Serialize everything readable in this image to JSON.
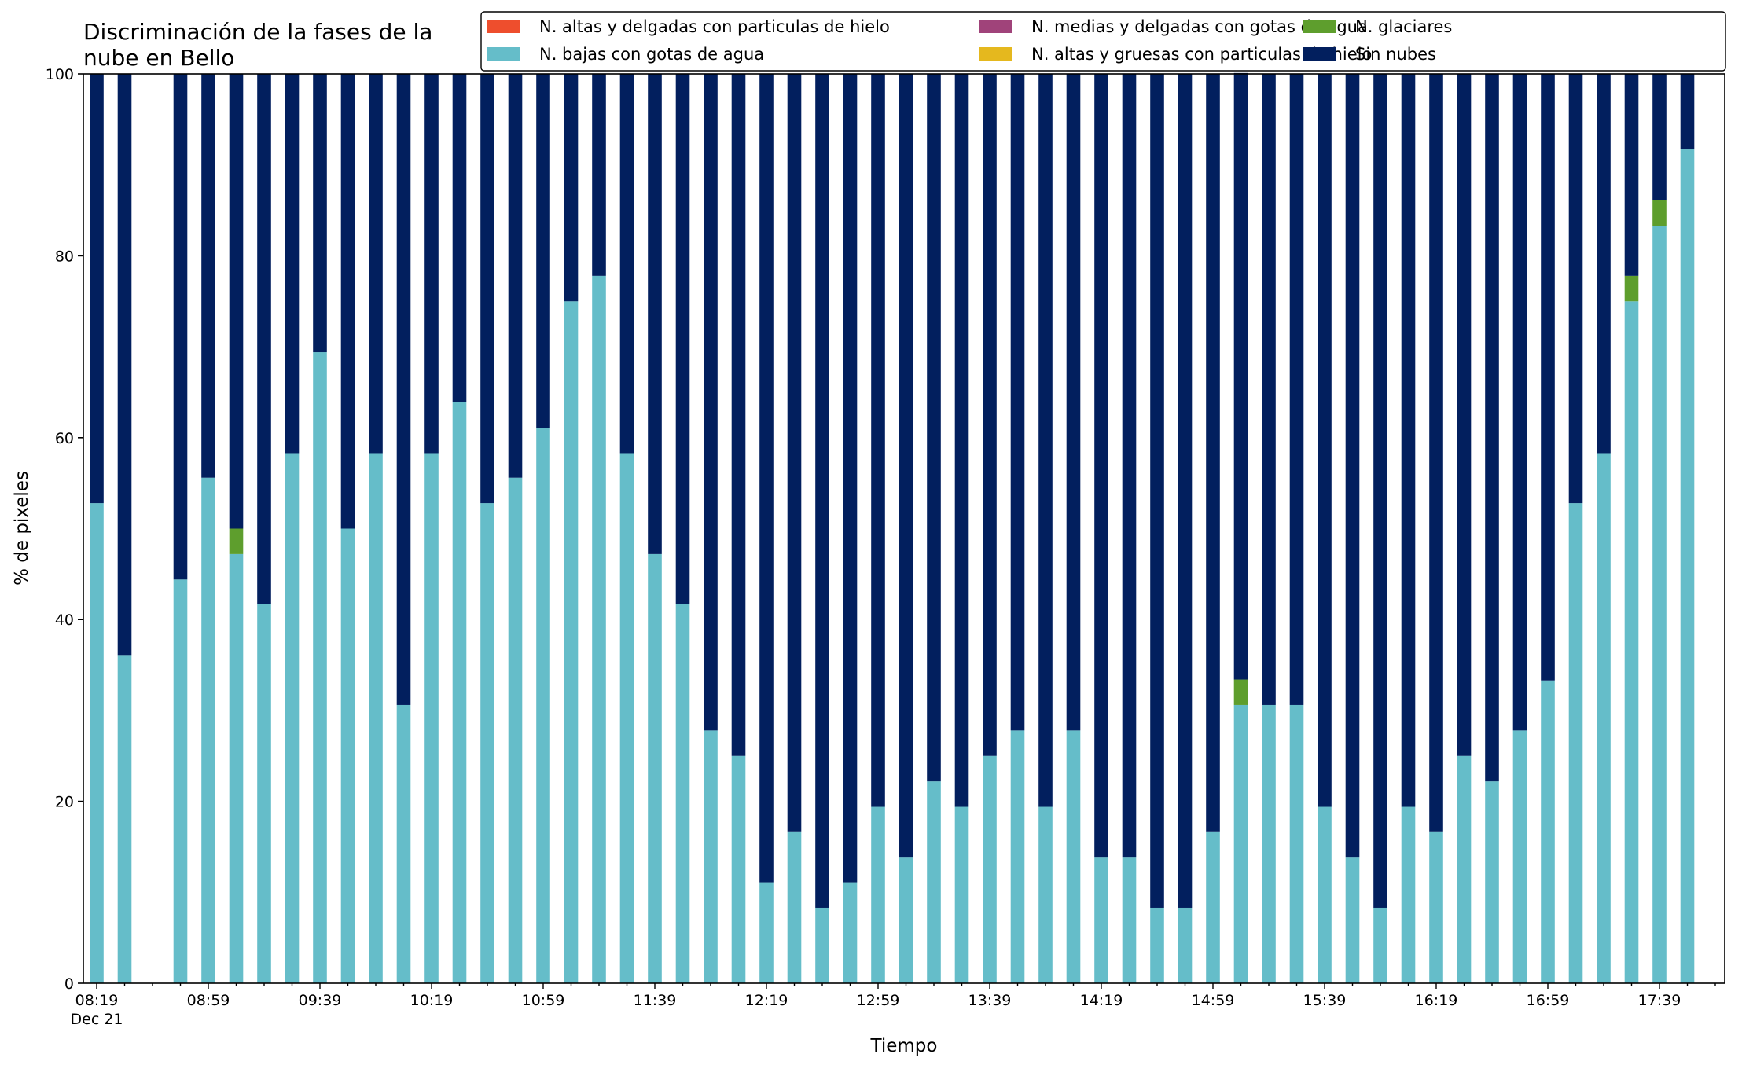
{
  "chart_data": {
    "type": "bar",
    "stacked": true,
    "title_lines": [
      "Discriminación de la fases de la",
      "nube en Bello"
    ],
    "xlabel": "Tiempo",
    "ylabel": "% de pixeles",
    "ylim": [
      0,
      100
    ],
    "yticks": [
      0,
      20,
      40,
      60,
      80,
      100
    ],
    "grid": false,
    "legend_position": "top-right",
    "x_interval_minutes": 10,
    "x_start_time": "08:19",
    "x_tick_labels": [
      {
        "index": 0,
        "label": "08:19",
        "sublabel": "Dec 21"
      },
      {
        "index": 4,
        "label": "08:59"
      },
      {
        "index": 8,
        "label": "09:39"
      },
      {
        "index": 12,
        "label": "10:19"
      },
      {
        "index": 16,
        "label": "10:59"
      },
      {
        "index": 20,
        "label": "11:39"
      },
      {
        "index": 24,
        "label": "12:19"
      },
      {
        "index": 28,
        "label": "12:59"
      },
      {
        "index": 32,
        "label": "13:39"
      },
      {
        "index": 36,
        "label": "14:19"
      },
      {
        "index": 40,
        "label": "14:59"
      },
      {
        "index": 44,
        "label": "15:39"
      },
      {
        "index": 48,
        "label": "16:19"
      },
      {
        "index": 52,
        "label": "16:59"
      },
      {
        "index": 56,
        "label": "17:39"
      }
    ],
    "legend_order": [
      "altas_delgadas",
      "bajas_agua",
      "medias_delgadas",
      "altas_gruesas",
      "glaciares",
      "sin_nubes"
    ],
    "series": [
      {
        "key": "altas_delgadas",
        "name": "N. altas y delgadas con particulas de hielo",
        "color": "#ee4e2d",
        "values": [
          0,
          0,
          null,
          0,
          0,
          0,
          0,
          0,
          0,
          0,
          0,
          0,
          0,
          0,
          0,
          0,
          0,
          0,
          0,
          0,
          0,
          0,
          0,
          0,
          0,
          0,
          0,
          0,
          0,
          0,
          0,
          0,
          0,
          0,
          0,
          0,
          0,
          0,
          0,
          0,
          0,
          0,
          0,
          0,
          0,
          0,
          0,
          0,
          0,
          0,
          0,
          0,
          0,
          0,
          0,
          0,
          0,
          0
        ]
      },
      {
        "key": "altas_gruesas",
        "name": "N. altas y gruesas con particulas de hielo",
        "color": "#e5b81e",
        "values": [
          0,
          0,
          null,
          0,
          0,
          0,
          0,
          0,
          0,
          0,
          0,
          0,
          0,
          0,
          0,
          0,
          0,
          0,
          0,
          0,
          0,
          0,
          0,
          0,
          0,
          0,
          0,
          0,
          0,
          0,
          0,
          0,
          0,
          0,
          0,
          0,
          0,
          0,
          0,
          0,
          0,
          0,
          0,
          0,
          0,
          0,
          0,
          0,
          0,
          0,
          0,
          0,
          0,
          0,
          0,
          0,
          0,
          0
        ]
      },
      {
        "key": "bajas_agua",
        "name": "N. bajas con gotas de agua",
        "color": "#65bdc9",
        "values": [
          52.8,
          36.1,
          null,
          44.4,
          55.6,
          47.2,
          41.7,
          58.3,
          69.4,
          50.0,
          58.3,
          30.6,
          58.3,
          63.9,
          52.8,
          55.6,
          61.1,
          75.0,
          77.8,
          58.3,
          47.2,
          41.7,
          27.8,
          25.0,
          11.1,
          16.7,
          8.3,
          11.1,
          19.4,
          13.9,
          22.2,
          19.4,
          25.0,
          27.8,
          19.4,
          27.8,
          13.9,
          13.9,
          8.3,
          8.3,
          16.7,
          30.6,
          30.6,
          30.6,
          19.4,
          13.9,
          8.3,
          19.4,
          16.7,
          25.0,
          22.2,
          27.8,
          33.3,
          52.8,
          58.3,
          75.0,
          83.3,
          91.7
        ]
      },
      {
        "key": "glaciares",
        "name": "N. glaciares",
        "color": "#5e9e2d",
        "values": [
          0,
          0,
          null,
          0,
          0,
          2.8,
          0,
          0,
          0,
          0,
          0,
          0,
          0,
          0,
          0,
          0,
          0,
          0,
          0,
          0,
          0,
          0,
          0,
          0,
          0,
          0,
          0,
          0,
          0,
          0,
          0,
          0,
          0,
          0,
          0,
          0,
          0,
          0,
          0,
          0,
          0,
          2.8,
          0,
          0,
          0,
          0,
          0,
          0,
          0,
          0,
          0,
          0,
          0,
          0,
          0,
          2.8,
          2.8,
          0
        ]
      },
      {
        "key": "medias_delgadas",
        "name": "N. medias y delgadas con gotas de agua",
        "color": "#a0437a",
        "values": [
          0,
          0,
          null,
          0,
          0,
          0,
          0,
          0,
          0,
          0,
          0,
          0,
          0,
          0,
          0,
          0,
          0,
          0,
          0,
          0,
          0,
          0,
          0,
          0,
          0,
          0,
          0,
          0,
          0,
          0,
          0,
          0,
          0,
          0,
          0,
          0,
          0,
          0,
          0,
          0,
          0,
          0,
          0,
          0,
          0,
          0,
          0,
          0,
          0,
          0,
          0,
          0,
          0,
          0,
          0,
          0,
          0,
          0
        ]
      },
      {
        "key": "sin_nubes",
        "name": "Sin nubes",
        "color": "#021f5e",
        "values": [
          47.2,
          63.9,
          null,
          55.6,
          44.4,
          50.0,
          58.3,
          41.7,
          30.6,
          50.0,
          41.7,
          69.4,
          41.7,
          36.1,
          47.2,
          44.4,
          38.9,
          25.0,
          22.2,
          41.7,
          52.8,
          58.3,
          72.2,
          75.0,
          88.9,
          83.3,
          91.7,
          88.9,
          80.6,
          86.1,
          77.8,
          80.6,
          75.0,
          72.2,
          80.6,
          72.2,
          86.1,
          86.1,
          91.7,
          91.7,
          83.3,
          66.7,
          69.4,
          69.4,
          80.6,
          86.1,
          91.7,
          80.6,
          83.3,
          75.0,
          77.8,
          72.2,
          66.7,
          47.2,
          41.7,
          22.2,
          13.9,
          8.3
        ]
      }
    ]
  }
}
